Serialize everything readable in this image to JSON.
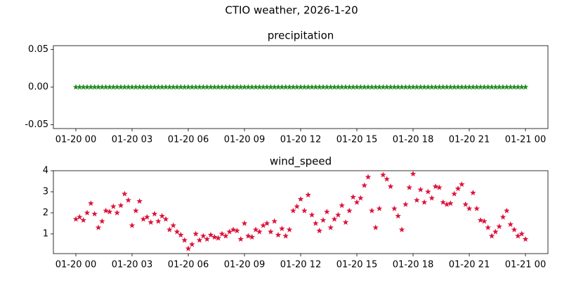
{
  "title": "CTIO weather, 2026-1-20",
  "chart_data": [
    {
      "type": "scatter",
      "title": "precipitation",
      "marker": "star",
      "x": [
        0,
        0.2,
        0.4,
        0.6,
        0.8,
        1,
        1.2,
        1.4,
        1.6,
        1.8,
        2,
        2.2,
        2.4,
        2.6,
        2.8,
        3,
        3.2,
        3.4,
        3.6,
        3.8,
        4,
        4.2,
        4.4,
        4.6,
        4.8,
        5,
        5.2,
        5.4,
        5.6,
        5.8,
        6,
        6.2,
        6.4,
        6.6,
        6.8,
        7,
        7.2,
        7.4,
        7.6,
        7.8,
        8,
        8.2,
        8.4,
        8.6,
        8.8,
        9,
        9.2,
        9.4,
        9.6,
        9.8,
        10,
        10.2,
        10.4,
        10.6,
        10.8,
        11,
        11.2,
        11.4,
        11.6,
        11.8,
        12,
        12.2,
        12.4,
        12.6,
        12.8,
        13,
        13.2,
        13.4,
        13.6,
        13.8,
        14,
        14.2,
        14.4,
        14.6,
        14.8,
        15,
        15.2,
        15.4,
        15.6,
        15.8,
        16,
        16.2,
        16.4,
        16.6,
        16.8,
        17,
        17.2,
        17.4,
        17.6,
        17.8,
        18,
        18.2,
        18.4,
        18.6,
        18.8,
        19,
        19.2,
        19.4,
        19.6,
        19.8,
        20,
        20.2,
        20.4,
        20.6,
        20.8,
        21,
        21.2,
        21.4,
        21.6,
        21.8,
        22,
        22.2,
        22.4,
        22.6,
        22.8,
        23,
        23.2,
        23.4,
        23.6,
        23.8,
        24
      ],
      "series": [
        {
          "name": "precipitation",
          "color": "#228b22",
          "values": [
            0,
            0,
            0,
            0,
            0,
            0,
            0,
            0,
            0,
            0,
            0,
            0,
            0,
            0,
            0,
            0,
            0,
            0,
            0,
            0,
            0,
            0,
            0,
            0,
            0,
            0,
            0,
            0,
            0,
            0,
            0,
            0,
            0,
            0,
            0,
            0,
            0,
            0,
            0,
            0,
            0,
            0,
            0,
            0,
            0,
            0,
            0,
            0,
            0,
            0,
            0,
            0,
            0,
            0,
            0,
            0,
            0,
            0,
            0,
            0,
            0,
            0,
            0,
            0,
            0,
            0,
            0,
            0,
            0,
            0,
            0,
            0,
            0,
            0,
            0,
            0,
            0,
            0,
            0,
            0,
            0,
            0,
            0,
            0,
            0,
            0,
            0,
            0,
            0,
            0,
            0,
            0,
            0,
            0,
            0,
            0,
            0,
            0,
            0,
            0,
            0,
            0,
            0,
            0,
            0,
            0,
            0,
            0,
            0,
            0,
            0,
            0,
            0,
            0,
            0,
            0,
            0,
            0,
            0,
            0,
            0
          ]
        }
      ],
      "xlim": [
        -1.2,
        25.2
      ],
      "xticks": [
        {
          "value": 0,
          "label": "01-20 00"
        },
        {
          "value": 3,
          "label": "01-20 03"
        },
        {
          "value": 6,
          "label": "01-20 06"
        },
        {
          "value": 9,
          "label": "01-20 09"
        },
        {
          "value": 12,
          "label": "01-20 12"
        },
        {
          "value": 15,
          "label": "01-20 15"
        },
        {
          "value": 18,
          "label": "01-20 18"
        },
        {
          "value": 21,
          "label": "01-20 21"
        },
        {
          "value": 24,
          "label": "01-21 00"
        }
      ],
      "ylim": [
        -0.055,
        0.055
      ],
      "yticks": [
        {
          "value": -0.05,
          "label": "-0.05"
        },
        {
          "value": 0,
          "label": "0.00"
        },
        {
          "value": 0.05,
          "label": "0.05"
        }
      ]
    },
    {
      "type": "scatter",
      "title": "wind_speed",
      "marker": "star",
      "x": [
        0,
        0.2,
        0.4,
        0.6,
        0.8,
        1,
        1.2,
        1.4,
        1.6,
        1.8,
        2,
        2.2,
        2.4,
        2.6,
        2.8,
        3,
        3.2,
        3.4,
        3.6,
        3.8,
        4,
        4.2,
        4.4,
        4.6,
        4.8,
        5,
        5.2,
        5.4,
        5.6,
        5.8,
        6,
        6.2,
        6.4,
        6.6,
        6.8,
        7,
        7.2,
        7.4,
        7.6,
        7.8,
        8,
        8.2,
        8.4,
        8.6,
        8.8,
        9,
        9.2,
        9.4,
        9.6,
        9.8,
        10,
        10.2,
        10.4,
        10.6,
        10.8,
        11,
        11.2,
        11.4,
        11.6,
        11.8,
        12,
        12.2,
        12.4,
        12.6,
        12.8,
        13,
        13.2,
        13.4,
        13.6,
        13.8,
        14,
        14.2,
        14.4,
        14.6,
        14.8,
        15,
        15.2,
        15.4,
        15.6,
        15.8,
        16,
        16.2,
        16.4,
        16.6,
        16.8,
        17,
        17.2,
        17.4,
        17.6,
        17.8,
        18,
        18.2,
        18.4,
        18.6,
        18.8,
        19,
        19.2,
        19.4,
        19.6,
        19.8,
        20,
        20.2,
        20.4,
        20.6,
        20.8,
        21,
        21.2,
        21.4,
        21.6,
        21.8,
        22,
        22.2,
        22.4,
        22.6,
        22.8,
        23,
        23.2,
        23.4,
        23.6,
        23.8,
        24
      ],
      "series": [
        {
          "name": "wind_speed",
          "color": "#dc143c",
          "values": [
            1.7,
            1.8,
            1.65,
            2.0,
            2.45,
            1.95,
            1.3,
            1.6,
            2.1,
            2.05,
            2.3,
            2.0,
            2.35,
            2.9,
            2.6,
            1.4,
            2.1,
            2.55,
            1.7,
            1.8,
            1.55,
            1.95,
            1.6,
            1.85,
            1.7,
            1.2,
            1.4,
            1.1,
            0.95,
            0.7,
            0.3,
            0.5,
            1.0,
            0.7,
            0.9,
            0.75,
            0.95,
            0.85,
            0.8,
            1.0,
            0.9,
            1.1,
            1.2,
            1.15,
            0.75,
            1.5,
            0.9,
            0.85,
            1.2,
            1.1,
            1.4,
            1.5,
            1.1,
            1.6,
            0.95,
            1.25,
            0.9,
            1.2,
            2.1,
            2.3,
            2.65,
            2.1,
            2.85,
            1.9,
            1.5,
            1.15,
            1.65,
            2.05,
            1.3,
            1.7,
            1.9,
            2.35,
            1.55,
            2.1,
            2.75,
            2.5,
            2.7,
            3.3,
            3.7,
            2.1,
            1.3,
            2.2,
            3.8,
            3.6,
            3.25,
            2.2,
            1.85,
            1.2,
            2.4,
            3.2,
            3.85,
            2.6,
            3.1,
            2.5,
            3.0,
            2.7,
            3.25,
            3.2,
            2.5,
            2.4,
            2.45,
            2.9,
            3.15,
            3.35,
            2.4,
            2.2,
            2.95,
            2.2,
            1.65,
            1.6,
            1.3,
            0.9,
            1.1,
            1.35,
            1.8,
            2.1,
            1.45,
            1.2,
            0.9,
            1.0,
            0.75
          ]
        }
      ],
      "xlim": [
        -1.2,
        25.2
      ],
      "xticks": [
        {
          "value": 0,
          "label": "01-20 00"
        },
        {
          "value": 3,
          "label": "01-20 03"
        },
        {
          "value": 6,
          "label": "01-20 06"
        },
        {
          "value": 9,
          "label": "01-20 09"
        },
        {
          "value": 12,
          "label": "01-20 12"
        },
        {
          "value": 15,
          "label": "01-20 15"
        },
        {
          "value": 18,
          "label": "01-20 18"
        },
        {
          "value": 21,
          "label": "01-20 21"
        },
        {
          "value": 24,
          "label": "01-21 00"
        }
      ],
      "ylim": [
        0.065,
        4.0
      ],
      "yticks": [
        1,
        2,
        3,
        4
      ]
    }
  ]
}
